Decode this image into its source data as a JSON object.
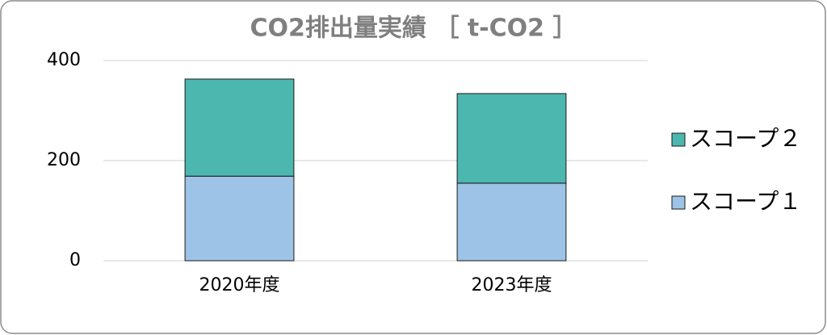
{
  "chart_data": {
    "type": "stacked_bar",
    "title": "CO2排出量実績 ［ t-CO2 ］",
    "categories": [
      "2020年度",
      "2023年度"
    ],
    "series": [
      {
        "name": "スコープ１",
        "color": "#9dc3e6",
        "values": [
          169,
          155
        ]
      },
      {
        "name": "スコープ２",
        "color": "#4cb7ae",
        "values": [
          194,
          179
        ]
      }
    ],
    "ylim": [
      0,
      400
    ],
    "yticks": [
      0,
      200,
      400
    ],
    "grid": true,
    "legend": "right"
  }
}
